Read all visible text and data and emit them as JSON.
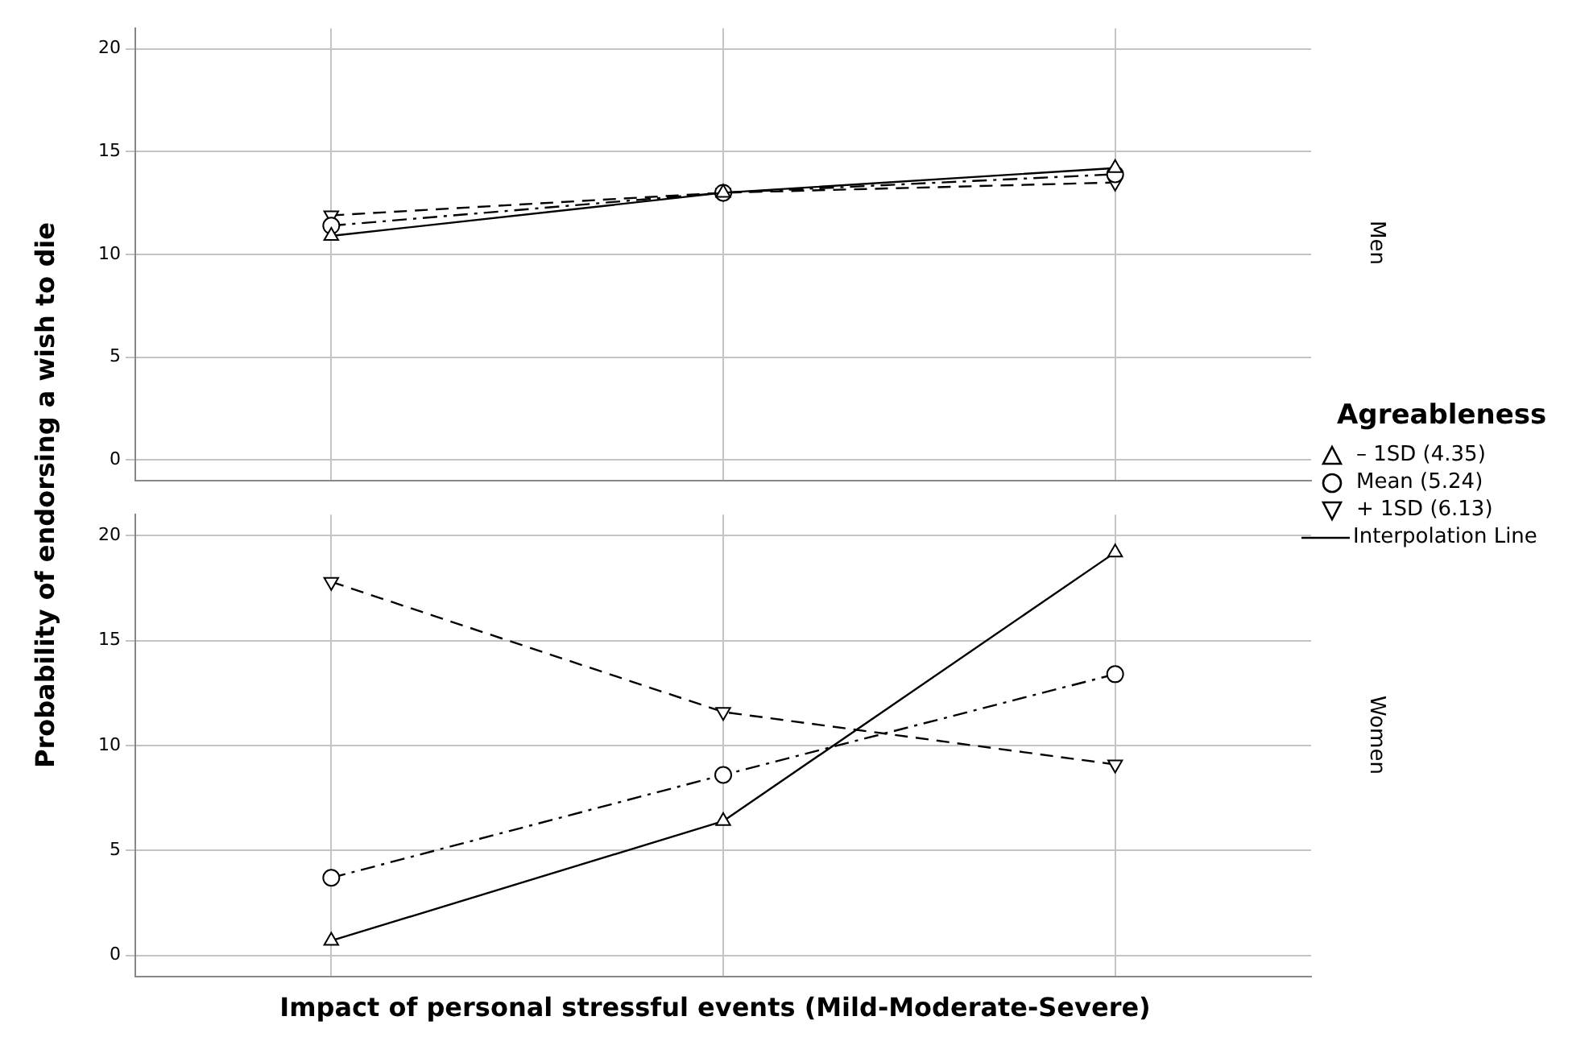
{
  "chart_data": [
    {
      "type": "line",
      "y2label": "Men",
      "categories": [
        null,
        null,
        null
      ],
      "ylim": [
        -1,
        21
      ],
      "yticks": [
        0,
        5,
        10,
        15,
        20
      ],
      "grid": true,
      "tick_labels": "y",
      "legend": "right",
      "legend_title": "Agreableness",
      "annotations": [
        "Interpolation Line"
      ],
      "series": [
        {
          "name": "– 1SD (4.35)",
          "color": "#000000",
          "marker": "triangle",
          "line_style": "solid",
          "values": [
            10.9,
            13.0,
            14.2
          ]
        },
        {
          "name": "Mean (5.24)",
          "color": "#000000",
          "marker": "circle",
          "line_style": "dashdot",
          "values": [
            11.4,
            13.0,
            13.9
          ]
        },
        {
          "name": "+ 1SD (6.13)",
          "color": "#000000",
          "marker": "triangle-down",
          "line_style": "dashed",
          "values": [
            11.9,
            13.0,
            13.5
          ]
        }
      ]
    },
    {
      "type": "line",
      "y2label": "Women",
      "xlabel": "Impact of personal stressful events (Mild-Moderate-Severe)",
      "ylabel": "Probability of endorsing a wish to die",
      "categories": [
        null,
        null,
        null
      ],
      "ylim": [
        -1,
        21
      ],
      "yticks": [
        0,
        5,
        10,
        15,
        20
      ],
      "grid": true,
      "tick_labels": "y",
      "series": [
        {
          "color": "#000000",
          "marker": "triangle",
          "line_style": "solid",
          "values": [
            0.7,
            6.4,
            19.2
          ]
        },
        {
          "color": "#000000",
          "marker": "circle",
          "line_style": "dashdot",
          "values": [
            3.7,
            8.6,
            13.4
          ]
        },
        {
          "color": "#000000",
          "marker": "triangle-down",
          "line_style": "dashed",
          "values": [
            17.8,
            11.6,
            9.1
          ]
        }
      ]
    }
  ]
}
